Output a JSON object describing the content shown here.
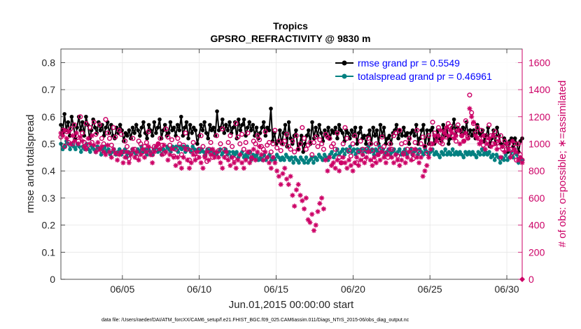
{
  "chart_data": {
    "type": "line",
    "title": "Tropics",
    "subtitle": "GPSRO_REFRACTIVITY @ 9830 m",
    "xlabel": "Jun.01,2015 00:00:00 start",
    "ylabel": "rmse and totalspread",
    "ylabel_right": "# of obs: o=possible; ∗=assimilated",
    "footnote": "data file: /Users/raeder/DAI/ATM_forcXX/CAM6_setup/f.e21.FHIST_BGC.f09_025.CAM6assim.011/Diags_NTrS_2015-06/obs_diag_output.nc",
    "xlim": [
      1,
      31
    ],
    "ylim": [
      0,
      0.85
    ],
    "ylim_right": [
      0,
      1700
    ],
    "x_ticks": [
      5,
      10,
      15,
      20,
      25,
      30
    ],
    "x_tick_labels": [
      "06/05",
      "06/10",
      "06/15",
      "06/20",
      "06/25",
      "06/30"
    ],
    "y_ticks": [
      0,
      0.1,
      0.2,
      0.3,
      0.4,
      0.5,
      0.6,
      0.7,
      0.8
    ],
    "y_tick_labels": [
      "0",
      "0.1",
      "0.2",
      "0.3",
      "0.4",
      "0.5",
      "0.6",
      "0.7",
      "0.8"
    ],
    "y_ticks_right": [
      0,
      200,
      400,
      600,
      800,
      1000,
      1200,
      1400,
      1600
    ],
    "y_tick_labels_right": [
      "0",
      "200",
      "400",
      "600",
      "800",
      "1000",
      "1200",
      "1400",
      "1600"
    ],
    "grid": true,
    "legend_position": "top-right",
    "series": [
      {
        "name": "rmse grand pr = 0.5549",
        "color": "#000000",
        "marker": "dot",
        "values": [
          0.57,
          0.54,
          0.61,
          0.55,
          0.58,
          0.53,
          0.6,
          0.57,
          0.52,
          0.56,
          0.6,
          0.55,
          0.58,
          0.53,
          0.6,
          0.57,
          0.52,
          0.55,
          0.59,
          0.56,
          0.54,
          0.58,
          0.55,
          0.57,
          0.53,
          0.56,
          0.58,
          0.54,
          0.57,
          0.53,
          0.52,
          0.56,
          0.54,
          0.57,
          0.55,
          0.51,
          0.54,
          0.53,
          0.55,
          0.52,
          0.56,
          0.54,
          0.57,
          0.55,
          0.53,
          0.56,
          0.58,
          0.54,
          0.52,
          0.57,
          0.55,
          0.53,
          0.58,
          0.54,
          0.56,
          0.59,
          0.52,
          0.55,
          0.57,
          0.53,
          0.54,
          0.58,
          0.55,
          0.56,
          0.53,
          0.57,
          0.55,
          0.6,
          0.53,
          0.56,
          0.58,
          0.52,
          0.57,
          0.54,
          0.56,
          0.55,
          0.5,
          0.53,
          0.57,
          0.55,
          0.58,
          0.54,
          0.52,
          0.57,
          0.55,
          0.56,
          0.53,
          0.62,
          0.55,
          0.56,
          0.59,
          0.54,
          0.57,
          0.55,
          0.58,
          0.54,
          0.56,
          0.58,
          0.52,
          0.59,
          0.55,
          0.57,
          0.59,
          0.53,
          0.56,
          0.58,
          0.55,
          0.57,
          0.53,
          0.56,
          0.52,
          0.54,
          0.56,
          0.58,
          0.53,
          0.56,
          0.55,
          0.63,
          0.51,
          0.54,
          0.5,
          0.51,
          0.55,
          0.5,
          0.54,
          0.57,
          0.49,
          0.58,
          0.52,
          0.5,
          0.53,
          0.55,
          0.48,
          0.5,
          0.53,
          0.47,
          0.5,
          0.53,
          0.55,
          0.5,
          0.58,
          0.52,
          0.56,
          0.53,
          0.57,
          0.54,
          0.51,
          0.55,
          0.53,
          0.56,
          0.52,
          0.55,
          0.54,
          0.56,
          0.52,
          0.57,
          0.55,
          0.54,
          0.51,
          0.55,
          0.54,
          0.52,
          0.55,
          0.53,
          0.56,
          0.5,
          0.54,
          0.56,
          0.52,
          0.53,
          0.5,
          0.53,
          0.55,
          0.5,
          0.56,
          0.53,
          0.55,
          0.5,
          0.57,
          0.53,
          0.56,
          0.5,
          0.52,
          0.53,
          0.5,
          0.54,
          0.55,
          0.57,
          0.52,
          0.55,
          0.53,
          0.56,
          0.53,
          0.54,
          0.5,
          0.54,
          0.55,
          0.53,
          0.57,
          0.5,
          0.52,
          0.55,
          0.57,
          0.49,
          0.55,
          0.5,
          0.55,
          0.56,
          0.5,
          0.52,
          0.55,
          0.52,
          0.51,
          0.57,
          0.53,
          0.56,
          0.5,
          0.52,
          0.56,
          0.59,
          0.53,
          0.56,
          0.55,
          0.53,
          0.56,
          0.54,
          0.58,
          0.52,
          0.55,
          0.53,
          0.55,
          0.52,
          0.57,
          0.54,
          0.53,
          0.55,
          0.51,
          0.53,
          0.56,
          0.49,
          0.52,
          0.55,
          0.5,
          0.56,
          0.53,
          0.5,
          0.49,
          0.52,
          0.5,
          0.47,
          0.51,
          0.52,
          0.49,
          0.52,
          0.5,
          0.47,
          0.51,
          0.52
        ]
      },
      {
        "name": "totalspread grand pr = 0.46961",
        "color": "#008080",
        "marker": "dot",
        "values": [
          0.5,
          0.48,
          0.49,
          0.51,
          0.5,
          0.48,
          0.5,
          0.49,
          0.48,
          0.5,
          0.49,
          0.47,
          0.49,
          0.48,
          0.5,
          0.48,
          0.47,
          0.49,
          0.48,
          0.47,
          0.49,
          0.48,
          0.46,
          0.48,
          0.49,
          0.47,
          0.48,
          0.46,
          0.47,
          0.48,
          0.46,
          0.47,
          0.48,
          0.46,
          0.47,
          0.48,
          0.45,
          0.47,
          0.46,
          0.48,
          0.47,
          0.46,
          0.48,
          0.47,
          0.49,
          0.47,
          0.48,
          0.46,
          0.48,
          0.47,
          0.46,
          0.48,
          0.49,
          0.47,
          0.48,
          0.46,
          0.48,
          0.47,
          0.49,
          0.48,
          0.47,
          0.49,
          0.48,
          0.49,
          0.47,
          0.49,
          0.48,
          0.49,
          0.47,
          0.49,
          0.48,
          0.47,
          0.49,
          0.48,
          0.47,
          0.48,
          0.47,
          0.48,
          0.47,
          0.46,
          0.48,
          0.47,
          0.48,
          0.46,
          0.47,
          0.46,
          0.47,
          0.48,
          0.46,
          0.47,
          0.48,
          0.46,
          0.47,
          0.45,
          0.47,
          0.46,
          0.47,
          0.45,
          0.46,
          0.47,
          0.45,
          0.46,
          0.45,
          0.47,
          0.44,
          0.46,
          0.45,
          0.46,
          0.44,
          0.45,
          0.44,
          0.46,
          0.44,
          0.45,
          0.46,
          0.44,
          0.45,
          0.44,
          0.46,
          0.45,
          0.44,
          0.45,
          0.44,
          0.46,
          0.45,
          0.44,
          0.45,
          0.43,
          0.45,
          0.44,
          0.43,
          0.45,
          0.44,
          0.43,
          0.45,
          0.43,
          0.44,
          0.45,
          0.43,
          0.45,
          0.44,
          0.46,
          0.45,
          0.44,
          0.46,
          0.45,
          0.44,
          0.46,
          0.47,
          0.45,
          0.46,
          0.48,
          0.46,
          0.47,
          0.48,
          0.46,
          0.48,
          0.47,
          0.49,
          0.47,
          0.48,
          0.46,
          0.48,
          0.47,
          0.48,
          0.46,
          0.48,
          0.47,
          0.49,
          0.47,
          0.48,
          0.46,
          0.48,
          0.47,
          0.49,
          0.47,
          0.48,
          0.46,
          0.47,
          0.48,
          0.46,
          0.47,
          0.48,
          0.46,
          0.47,
          0.48,
          0.46,
          0.47,
          0.48,
          0.46,
          0.47,
          0.48,
          0.46,
          0.47,
          0.48,
          0.46,
          0.48,
          0.47,
          0.46,
          0.48,
          0.47,
          0.46,
          0.47,
          0.48,
          0.46,
          0.47,
          0.46,
          0.45,
          0.47,
          0.46,
          0.48,
          0.46,
          0.47,
          0.46,
          0.48,
          0.46,
          0.47,
          0.46,
          0.47,
          0.46,
          0.45,
          0.47,
          0.46,
          0.47,
          0.46,
          0.47,
          0.46,
          0.45,
          0.47,
          0.46,
          0.48,
          0.46,
          0.47,
          0.46,
          0.47,
          0.45,
          0.46,
          0.44,
          0.46,
          0.45,
          0.43,
          0.45,
          0.44,
          0.46,
          0.44,
          0.45,
          0.47,
          0.45,
          0.48,
          0.46,
          0.43,
          0.45,
          0.44
        ]
      },
      {
        "name": "possible",
        "color": "#cc0066",
        "marker": "circle",
        "axis": "right",
        "values": [
          1050,
          1100,
          980,
          1090,
          1010,
          1110,
          1000,
          1140,
          1060,
          1020,
          1200,
          1080,
          1010,
          1150,
          990,
          1120,
          1010,
          1160,
          1070,
          960,
          1140,
          1040,
          1000,
          1180,
          1080,
          1040,
          990,
          1120,
          1050,
          930,
          1100,
          1070,
          940,
          1020,
          980,
          890,
          930,
          1040,
          960,
          900,
          1020,
          1000,
          940,
          980,
          1010,
          1090,
          960,
          920,
          980,
          960,
          1000,
          1040,
          990,
          930,
          1110,
          1050,
          990,
          1030,
          910,
          960,
          1040,
          1000,
          920,
          990,
          1080,
          960,
          880,
          950,
          1010,
          930,
          900,
          960,
          1060,
          980,
          910,
          870,
          960,
          1010,
          900,
          930,
          1060,
          950,
          1000,
          1110,
          960,
          900,
          1010,
          1060,
          980,
          890,
          1150,
          1050,
          1000,
          1070,
          960,
          1010,
          1080,
          940,
          890,
          1020,
          1000,
          1060,
          1030,
          980,
          960,
          1090,
          990,
          1010,
          940,
          1000,
          1100,
          970,
          1020,
          950,
          1000,
          1020,
          1070,
          980,
          960,
          1020,
          940,
          1060,
          960,
          1000,
          1120,
          1040,
          960,
          990,
          1010,
          920,
          1010,
          1050,
          980,
          1030,
          1000,
          960,
          1070,
          1050,
          1040,
          980,
          1000,
          960,
          1080,
          900,
          860,
          1000,
          1120,
          1040,
          950,
          910,
          1000,
          1060,
          860,
          940,
          1020,
          960,
          880,
          960,
          1040,
          1000,
          950,
          880,
          1000,
          920,
          960,
          1050,
          980,
          930,
          900,
          1000,
          960,
          1060,
          1080,
          910,
          1100,
          1000,
          930,
          1010,
          960,
          1040,
          960,
          890,
          1010,
          1100,
          940,
          1000,
          1050,
          980,
          930,
          1060,
          1000,
          1160,
          1080,
          1050,
          1120,
          1010,
          1000,
          1090,
          1050,
          1150,
          1130,
          1060,
          1090,
          1020,
          1140,
          1100,
          1060,
          1020,
          1170,
          1050,
          1360,
          1230,
          1150,
          1080,
          1120,
          1040,
          1100,
          990,
          1060,
          1020,
          1140,
          1060,
          1000,
          1090,
          1040,
          980,
          1060,
          960,
          1020,
          960,
          1000,
          960,
          930,
          1000,
          880,
          1000,
          920,
          880
        ]
      },
      {
        "name": "assimilated",
        "color": "#cc0066",
        "marker": "asterisk",
        "axis": "right",
        "values": [
          1080,
          1060,
          1100,
          1040,
          1090,
          1000,
          1060,
          1020,
          1080,
          1000,
          1050,
          1020,
          980,
          960,
          1040,
          1000,
          1060,
          990,
          940,
          1010,
          960,
          980,
          940,
          920,
          990,
          940,
          900,
          960,
          930,
          880,
          920,
          940,
          860,
          900,
          940,
          860,
          920,
          960,
          900,
          940,
          880,
          920,
          960,
          900,
          940,
          980,
          920,
          860,
          940,
          980,
          1000,
          960,
          920,
          990,
          940,
          880,
          920,
          960,
          900,
          840,
          900,
          860,
          820,
          900,
          960,
          880,
          820,
          860,
          920,
          880,
          940,
          900,
          860,
          820,
          900,
          940,
          880,
          920,
          960,
          900,
          940,
          900,
          860,
          820,
          900,
          940,
          880,
          840,
          900,
          860,
          820,
          880,
          920,
          860,
          820,
          880,
          940,
          860,
          900,
          960,
          880,
          940,
          980,
          920,
          880,
          940,
          900,
          860,
          820,
          900,
          860,
          800,
          760,
          700,
          780,
          820,
          740,
          700,
          760,
          620,
          540,
          660,
          700,
          620,
          580,
          520,
          600,
          440,
          420,
          480,
          360,
          400,
          500,
          560,
          600,
          520,
          880,
          800,
          900,
          840,
          860,
          820,
          880,
          800,
          860,
          900,
          860,
          820,
          880,
          840,
          800,
          860,
          900,
          840,
          880,
          920,
          860,
          900,
          940,
          880,
          840,
          900,
          860,
          920,
          880,
          940,
          900,
          860,
          920,
          960,
          900,
          860,
          920,
          880,
          840,
          880,
          920,
          860,
          900,
          940,
          880,
          920,
          960,
          900,
          860,
          900,
          760,
          800,
          840,
          900,
          960,
          1000,
          1060,
          1020,
          1060,
          1100,
          1040,
          1080,
          1120,
          1060,
          1100,
          1080,
          1040,
          1060,
          1100,
          1000,
          1060,
          1020,
          1080,
          1040,
          1260,
          1200,
          1160,
          1060,
          1040,
          1000,
          1020,
          1060,
          960,
          1000,
          1040,
          980,
          1060,
          1000,
          960,
          1020,
          900,
          980,
          940,
          1000,
          960,
          900,
          1020,
          960,
          940,
          880,
          900,
          860
        ]
      }
    ]
  }
}
